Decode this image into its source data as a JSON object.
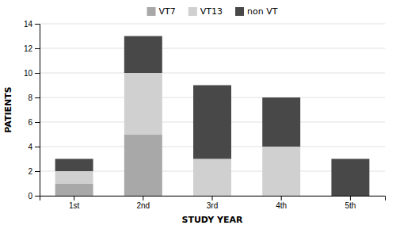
{
  "chart_data": {
    "type": "bar",
    "stacked": true,
    "xlabel": "STUDY YEAR",
    "ylabel": "PATIENTS",
    "categories": [
      "1st",
      "2nd",
      "3rd",
      "4th",
      "5th"
    ],
    "series": [
      {
        "name": "VT7",
        "color": "#a8a8a8",
        "values": [
          1,
          5,
          0,
          0,
          0
        ]
      },
      {
        "name": "VT13",
        "color": "#d0d0d0",
        "values": [
          1,
          5,
          3,
          4,
          0
        ]
      },
      {
        "name": "non VT",
        "color": "#484848",
        "values": [
          1,
          3,
          6,
          4,
          3
        ]
      }
    ],
    "ylim": [
      0,
      14
    ],
    "yticks": [
      0,
      2,
      4,
      6,
      8,
      10,
      12,
      14
    ],
    "grid": true,
    "legend": "top"
  }
}
